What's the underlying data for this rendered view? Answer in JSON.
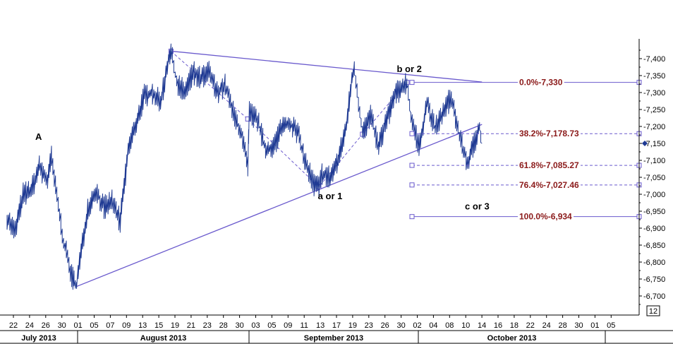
{
  "chart_data": {
    "type": "line",
    "xlabel": "",
    "ylabel": "",
    "ylim": [
      6650,
      7450
    ],
    "y_ticks": [
      "-6,700",
      "-6,750",
      "-6,800",
      "-6,850",
      "-6,900",
      "-6,950",
      "-7,000",
      "-7,050",
      "-7,100",
      "-7,150",
      "-7,200",
      "-7,250",
      "-7,300",
      "-7,350",
      "-7,400"
    ],
    "y_tick_values": [
      6700,
      6750,
      6800,
      6850,
      6900,
      6950,
      7000,
      7050,
      7100,
      7150,
      7200,
      7250,
      7300,
      7350,
      7400
    ],
    "x_day_labels": [
      "22",
      "24",
      "26",
      "30",
      "01",
      "05",
      "07",
      "09",
      "13",
      "15",
      "19",
      "21",
      "23",
      "28",
      "30",
      "03",
      "05",
      "09",
      "11",
      "13",
      "17",
      "19",
      "23",
      "26",
      "30",
      "02",
      "04",
      "08",
      "10",
      "14",
      "16",
      "18",
      "22",
      "24",
      "28",
      "30",
      "01",
      "05"
    ],
    "months": [
      {
        "label": "July 2013"
      },
      {
        "label": "August 2013"
      },
      {
        "label": "September 2013"
      },
      {
        "label": "October 2013"
      }
    ],
    "grid": false,
    "price_series": {
      "name": "",
      "color": "#1f3a93",
      "anchors": [
        [
          0,
          6930
        ],
        [
          1,
          6890
        ],
        [
          2,
          7000
        ],
        [
          3,
          7010
        ],
        [
          4,
          7080
        ],
        [
          5,
          7040
        ],
        [
          5.5,
          7110
        ],
        [
          6,
          7020
        ],
        [
          7,
          6860
        ],
        [
          8,
          6760
        ],
        [
          8.6,
          6730
        ],
        [
          9,
          6800
        ],
        [
          10,
          6960
        ],
        [
          11,
          7010
        ],
        [
          12,
          6960
        ],
        [
          13,
          6980
        ],
        [
          14,
          6920
        ],
        [
          15,
          7130
        ],
        [
          16,
          7210
        ],
        [
          17,
          7290
        ],
        [
          18,
          7300
        ],
        [
          19,
          7270
        ],
        [
          20,
          7400
        ],
        [
          20.3,
          7420
        ],
        [
          21,
          7330
        ],
        [
          22,
          7300
        ],
        [
          23,
          7360
        ],
        [
          24,
          7340
        ],
        [
          25,
          7360
        ],
        [
          26,
          7300
        ],
        [
          27,
          7320
        ],
        [
          28,
          7240
        ],
        [
          29,
          7180
        ],
        [
          29.8,
          7080
        ],
        [
          30,
          7240
        ],
        [
          31,
          7220
        ],
        [
          32,
          7130
        ],
        [
          33,
          7140
        ],
        [
          34,
          7200
        ],
        [
          35,
          7210
        ],
        [
          36,
          7180
        ],
        [
          37,
          7090
        ],
        [
          38,
          7030
        ],
        [
          38.6,
          7020
        ],
        [
          39,
          7060
        ],
        [
          40,
          7050
        ],
        [
          41,
          7100
        ],
        [
          42,
          7200
        ],
        [
          42.7,
          7340
        ],
        [
          43,
          7370
        ],
        [
          44,
          7180
        ],
        [
          45,
          7230
        ],
        [
          46,
          7140
        ],
        [
          47,
          7220
        ],
        [
          48,
          7290
        ],
        [
          49,
          7320
        ],
        [
          49.5,
          7330
        ],
        [
          50,
          7230
        ],
        [
          51,
          7140
        ],
        [
          52,
          7270
        ],
        [
          53,
          7190
        ],
        [
          54,
          7240
        ],
        [
          55,
          7290
        ],
        [
          56,
          7170
        ],
        [
          57,
          7090
        ],
        [
          58,
          7160
        ],
        [
          58.5,
          7200
        ],
        [
          58.8,
          7150
        ]
      ]
    },
    "trendlines": [
      {
        "from": [
          20.3,
          7422
        ],
        "to": [
          58.8,
          7331
        ]
      },
      {
        "from": [
          8.6,
          6728
        ],
        "to": [
          58.8,
          7206
        ]
      }
    ],
    "dashed_path": [
      [
        20.3,
        7422
      ],
      [
        29.8,
        7222
      ],
      [
        38.6,
        7022
      ],
      [
        44,
        7177
      ],
      [
        49.5,
        7330
      ]
    ],
    "fib_levels": [
      {
        "label": "0.0%",
        "value_text": "7,330",
        "value": 7330,
        "solid": true
      },
      {
        "label": "38.2%",
        "value_text": "7,178.73",
        "value": 7178.73,
        "solid": false
      },
      {
        "label": "61.8%",
        "value_text": "7,085.27",
        "value": 7085.27,
        "solid": false
      },
      {
        "label": "76.4%",
        "value_text": "7,027.46",
        "value": 7027.46,
        "solid": false
      },
      {
        "label": "100.0%",
        "value_text": "6,934",
        "value": 6934,
        "solid": true
      }
    ],
    "annotations": [
      {
        "text": "A",
        "at": [
          3.9,
          7160
        ]
      },
      {
        "text": "b or 2",
        "at": [
          49.8,
          7360
        ]
      },
      {
        "text": "a or 1",
        "at": [
          40.0,
          6985
        ]
      },
      {
        "text": "c or 3",
        "at": [
          58.2,
          6955
        ]
      }
    ],
    "current_value_marker": {
      "value": 7150,
      "color": "#1f3a93"
    },
    "corner_label": "12"
  },
  "colors": {
    "series": "#1f3a93",
    "trendline": "#6a5acd",
    "fib_text": "#8b1a1a",
    "axis": "#000000"
  }
}
